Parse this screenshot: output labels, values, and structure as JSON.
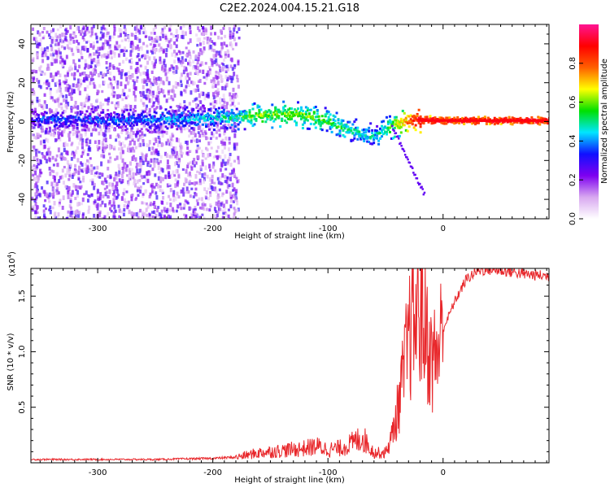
{
  "title": "C2E2.2024.004.15.21.G18",
  "colors": {
    "frame": "#000000",
    "snr_line": "#e8262a",
    "background": "#ffffff"
  },
  "chart_data": [
    {
      "type": "heatmap",
      "xlabel": "Height of straight line (km)",
      "ylabel": "Frequency (Hz)",
      "xlim": [
        -358,
        92
      ],
      "ylim": [
        -50,
        50
      ],
      "x_ticks": [
        -300,
        -200,
        -100,
        0
      ],
      "y_ticks": [
        -40,
        -20,
        0,
        20,
        40
      ],
      "colorbar": {
        "label": "Normalized spectral amplitude",
        "range": [
          0.0,
          1.0
        ],
        "ticks": [
          "0.0",
          "0.2",
          "0.4",
          "0.6",
          "0.8"
        ],
        "tick_values": [
          0.0,
          0.2,
          0.4,
          0.6,
          0.8
        ],
        "colormap": [
          "#ffffff",
          "#d8a8f0",
          "#7e00f0",
          "#1010ff",
          "#00e6ff",
          "#00e000",
          "#ffff00",
          "#ff6000",
          "#ff0000",
          "#ff1493"
        ]
      },
      "ridge": {
        "x": [
          -355,
          -300,
          -250,
          -200,
          -180,
          -160,
          -140,
          -120,
          -100,
          -80,
          -60,
          -45,
          -30,
          -20,
          0,
          20,
          40,
          60,
          90
        ],
        "y": [
          1,
          1,
          1,
          2,
          2,
          3,
          4,
          3,
          0,
          -5,
          -8,
          -2,
          0,
          1,
          0.5,
          0.5,
          0.5,
          0.5,
          0.5
        ],
        "amplitude": [
          0.35,
          0.35,
          0.4,
          0.45,
          0.5,
          0.6,
          0.6,
          0.6,
          0.55,
          0.5,
          0.45,
          0.6,
          0.8,
          0.95,
          0.95,
          0.95,
          0.95,
          0.95,
          0.95
        ]
      },
      "noise_region_x": [
        -358,
        -178
      ]
    },
    {
      "type": "line",
      "xlabel": "Height of straight line (km)",
      "ylabel": "SNR (10 * v/v)",
      "y_multiplier_label": "(x10",
      "y_multiplier_exp": "4",
      "xlim": [
        -358,
        92
      ],
      "ylim": [
        0,
        17500
      ],
      "x_ticks": [
        -300,
        -200,
        -100,
        0
      ],
      "y_ticks": [
        5000,
        10000,
        15000
      ],
      "y_tick_labels": [
        "0.5",
        "1.0",
        "1.5"
      ],
      "series": [
        {
          "x": [
            -358,
            -300,
            -250,
            -200,
            -180,
            -160,
            -140,
            -120,
            -110,
            -100,
            -90,
            -80,
            -70,
            -60,
            -50,
            -45,
            -40,
            -35,
            -30,
            -25,
            -20,
            -15,
            -10,
            -5,
            0,
            10,
            20,
            30,
            40,
            50,
            60,
            70,
            80,
            92
          ],
          "y": [
            300,
            300,
            300,
            400,
            500,
            900,
            1100,
            1300,
            1500,
            1200,
            1300,
            1700,
            2300,
            900,
            900,
            2200,
            4500,
            7500,
            11000,
            13000,
            14000,
            12000,
            9000,
            10000,
            12000,
            14500,
            16500,
            17300,
            17400,
            17300,
            17200,
            17000,
            16900,
            16800
          ]
        }
      ]
    }
  ]
}
